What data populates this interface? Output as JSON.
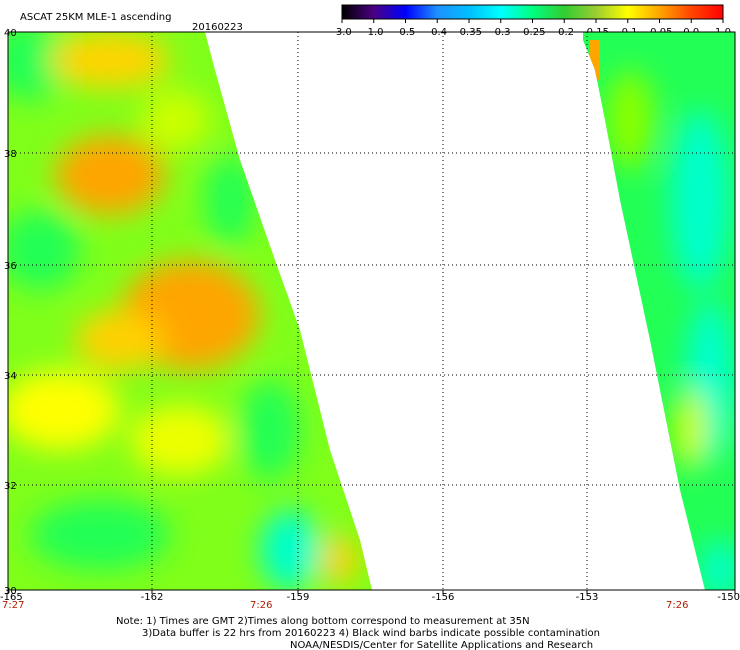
{
  "header": {
    "title": "ASCAT 25KM MLE-1 ascending",
    "date": "20160223"
  },
  "colorbar": {
    "labels": [
      "-3.0",
      "-1.0",
      "-0.5",
      "-0.4",
      "-0.35",
      "-0.3",
      "-0.25",
      "-0.2",
      "-0.15",
      "-0.1",
      "-0.05",
      "0.0",
      "1.0"
    ],
    "colors": [
      "#000000",
      "#4b0082",
      "#0000ff",
      "#1e90ff",
      "#00bfff",
      "#00ffff",
      "#00ff7f",
      "#32cd32",
      "#9acd32",
      "#ffff00",
      "#ffa500",
      "#ff4500",
      "#ff0000"
    ]
  },
  "map": {
    "lat_labels": [
      "40",
      "38",
      "36",
      "34",
      "32",
      "30"
    ],
    "lon_labels": [
      "-165",
      "-162",
      "-159",
      "-156",
      "-153",
      "-150"
    ],
    "time_labels": [
      "7:27",
      "7:26",
      "7:26"
    ],
    "field_colors": {
      "cyan": "#00ffdd",
      "green": "#22ff33",
      "lime": "#aaff00",
      "yellow": "#ffff00",
      "orange": "#ffaa00"
    }
  },
  "footer": {
    "line1": "Note: 1) Times are GMT 2)Times along bottom correspond to measurement at 35N",
    "line2": "3)Data buffer is 22 hrs from 20160223 4) Black wind barbs indicate possible contamination",
    "line3": "NOAA/NESDIS/Center for Satellite Applications and Research"
  }
}
